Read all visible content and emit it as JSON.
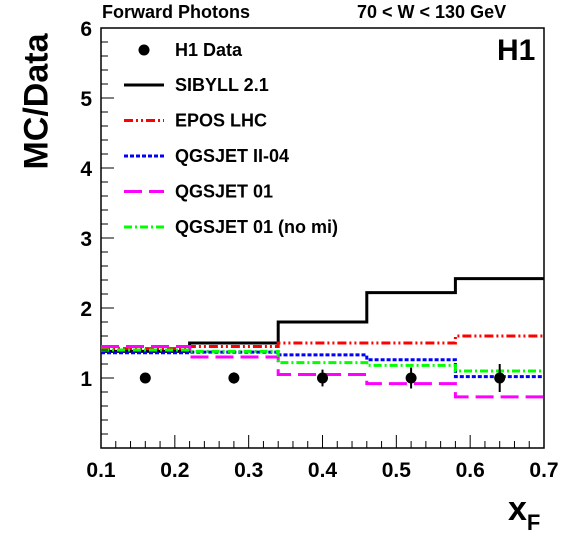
{
  "header": {
    "left": "Forward Photons",
    "right": "70 < W < 130 GeV",
    "experiment": "H1"
  },
  "chart_data": {
    "type": "line",
    "title": "Forward Photons",
    "subtitle": "70 < W < 130 GeV",
    "ylabel": "MC/Data",
    "xlabel": "x",
    "xlabel_sub": "F",
    "xlim": [
      0.1,
      0.7
    ],
    "ylim": [
      0,
      6
    ],
    "xticks": [
      "0.1",
      "0.2",
      "0.3",
      "0.4",
      "0.5",
      "0.6",
      "0.7"
    ],
    "yticks": [
      "1",
      "2",
      "3",
      "4",
      "5",
      "6"
    ],
    "bin_edges": [
      0.1,
      0.22,
      0.34,
      0.46,
      0.58,
      0.7
    ],
    "grid": false,
    "legend_position": "top-left",
    "data_points": {
      "name": "H1 Data",
      "x": [
        0.16,
        0.28,
        0.4,
        0.52,
        0.64
      ],
      "y": [
        1.0,
        1.0,
        1.0,
        1.0,
        1.0
      ],
      "yerr": [
        0.04,
        0.08,
        0.12,
        0.15,
        0.2
      ],
      "color": "#000000"
    },
    "series": [
      {
        "name": "SIBYLL 2.1",
        "values": [
          1.38,
          1.5,
          1.8,
          2.22,
          2.42
        ],
        "color": "#000000",
        "style": "solid"
      },
      {
        "name": "EPOS LHC",
        "values": [
          1.42,
          1.45,
          1.5,
          1.5,
          1.6
        ],
        "color": "#ff0000",
        "style": "dashdotdot"
      },
      {
        "name": "QGSJET II-04",
        "values": [
          1.36,
          1.37,
          1.33,
          1.26,
          1.02
        ],
        "color": "#0000ff",
        "style": "dotted"
      },
      {
        "name": "QGSJET 01",
        "values": [
          1.45,
          1.3,
          1.05,
          0.92,
          0.73
        ],
        "color": "#ff00ff",
        "style": "longdash"
      },
      {
        "name": "QGSJET 01 (no mi)",
        "values": [
          1.4,
          1.38,
          1.22,
          1.18,
          1.1
        ],
        "color": "#00ff00",
        "style": "dashdot"
      }
    ]
  }
}
